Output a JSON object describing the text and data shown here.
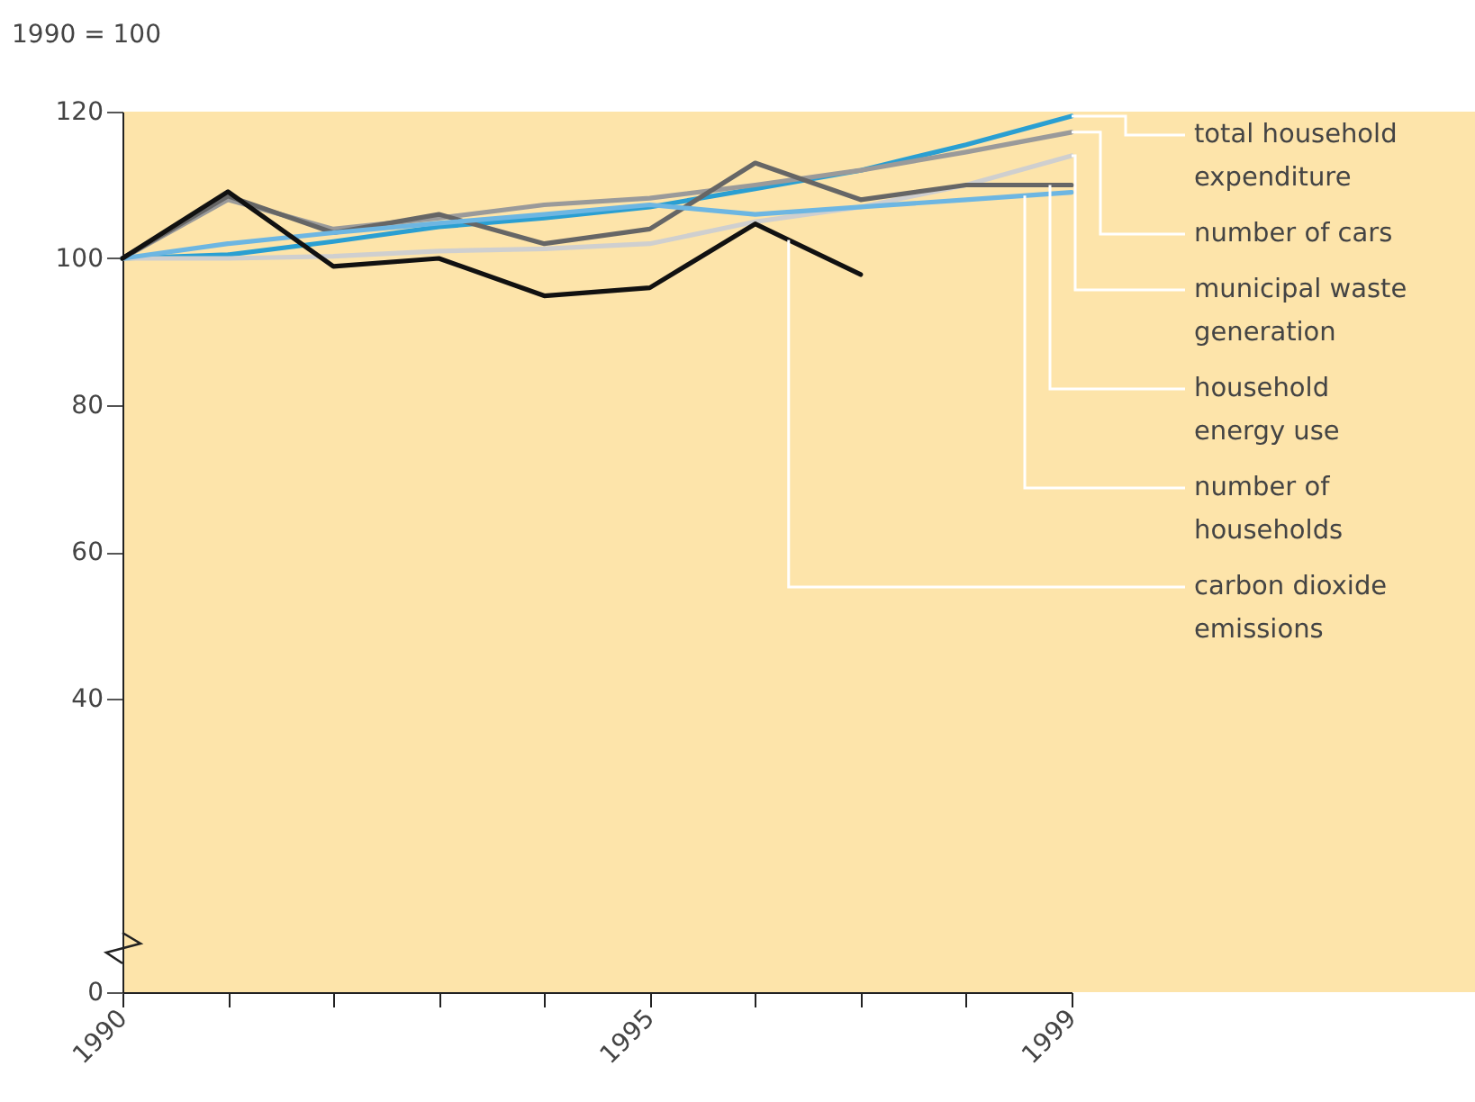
{
  "chart_data": {
    "type": "line",
    "ylabel": "1990 = 100",
    "legend": "right",
    "x": [
      1990,
      1991,
      1992,
      1993,
      1994,
      1995,
      1996,
      1997,
      1998,
      1999
    ],
    "xlim": [
      1990,
      1999
    ],
    "xticks": [
      1990,
      {
        "value": 1991,
        "label": null
      },
      {
        "value": 1992,
        "label": null
      },
      {
        "value": 1993,
        "label": null
      },
      {
        "value": 1994,
        "label": null
      },
      1995,
      {
        "value": 1996,
        "label": null
      },
      {
        "value": 1997,
        "label": null
      },
      {
        "value": 1998,
        "label": null
      },
      1999
    ],
    "ylim": [
      0,
      120
    ],
    "yticks": [
      0,
      40,
      60,
      80,
      100,
      120
    ],
    "series": [
      {
        "name": "total household expenditure",
        "color": "#2a9fd2",
        "values": [
          100,
          100.5,
          102.3,
          104.3,
          105.5,
          107,
          109.5,
          112,
          115.5,
          119.4
        ]
      },
      {
        "name": "number of cars",
        "color": "#9a9a9a",
        "values": [
          100,
          108,
          104,
          105.5,
          107.3,
          108.2,
          110,
          112,
          114.5,
          117.2
        ]
      },
      {
        "name": "municipal waste generation",
        "color": "#cfcfcf",
        "values": [
          100,
          100,
          100.3,
          101,
          101.3,
          102,
          105,
          107,
          110,
          114
        ]
      },
      {
        "name": "household energy use",
        "color": "#666666",
        "values": [
          100,
          108.5,
          103.5,
          106,
          102,
          104,
          113,
          108,
          110,
          110
        ]
      },
      {
        "name": "number of households",
        "color": "#6db6e2",
        "values": [
          100,
          102,
          103.5,
          104.8,
          106,
          107.3,
          106,
          107,
          108,
          109
        ]
      },
      {
        "name": "carbon dioxide emissions",
        "color": "#111111",
        "values": [
          100,
          109.1,
          98.9,
          100,
          94.9,
          96,
          104.7,
          97.8,
          null,
          null
        ]
      }
    ]
  }
}
